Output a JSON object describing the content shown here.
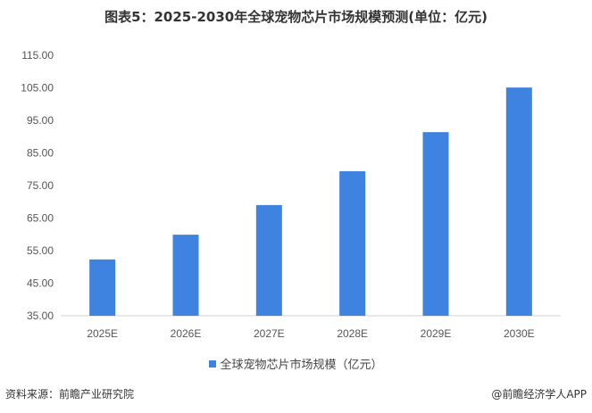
{
  "chart_data": {
    "type": "bar",
    "title": "图表5：2025-2030年全球宠物芯片市场规模预测(单位：亿元)",
    "categories": [
      "2025E",
      "2026E",
      "2027E",
      "2028E",
      "2029E",
      "2030E"
    ],
    "series": [
      {
        "name": "全球宠物芯片市场规模（亿元）",
        "values": [
          52.3,
          59.9,
          69.0,
          79.4,
          91.4,
          105.1
        ]
      }
    ],
    "ylim": [
      35,
      115
    ],
    "yticks": [
      "35.00",
      "45.00",
      "55.00",
      "65.00",
      "75.00",
      "85.00",
      "95.00",
      "105.00",
      "115.00"
    ],
    "grid": false,
    "legend": "bottom",
    "color": "#3F83E0"
  },
  "footer": {
    "source": "资料来源：前瞻产业研究院",
    "credit": "@前瞻经济学人APP"
  }
}
